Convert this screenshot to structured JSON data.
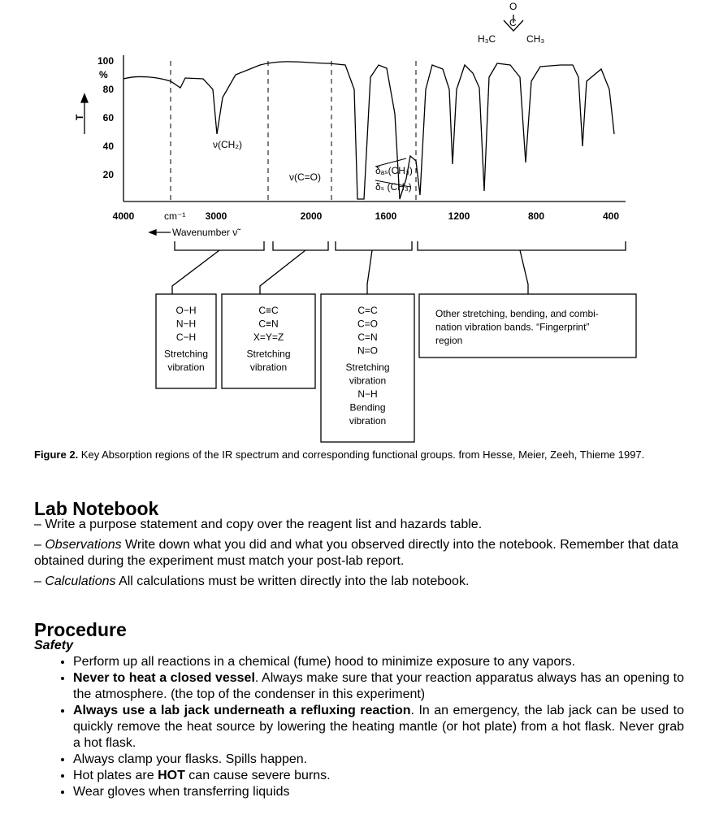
{
  "figure": {
    "y_axis_label": "T",
    "y_unit": "%",
    "y_ticks": [
      "100",
      "80",
      "60",
      "40",
      "20"
    ],
    "x_ticks": [
      "4000",
      "3000",
      "2000",
      "1600",
      "1200",
      "800",
      "400"
    ],
    "x_unit": "cm⁻¹",
    "x_label": "Wavenumber ν̃",
    "annotations": [
      "ν(CH₂)",
      "ν(C=O)",
      "δₐₛ(CH₃)",
      "δₛ (CH₃)"
    ],
    "molecule": [
      "O",
      "C",
      "H₃C",
      "CH₃"
    ],
    "regions": [
      {
        "groups": [
          "O−H",
          "N−H",
          "C−H"
        ],
        "caption": [
          "Stretching",
          "vibration"
        ]
      },
      {
        "groups": [
          "C≡C",
          "C≡N",
          "X=Y=Z"
        ],
        "caption": [
          "Stretching",
          "vibration"
        ]
      },
      {
        "groups": [
          "C=C",
          "C=O",
          "C=N",
          "N=O"
        ],
        "caption": [
          "Stretching",
          "vibration",
          "N−H",
          "Bending",
          "vibration"
        ]
      },
      {
        "groups": [
          "Other stretching, bending, and combi-",
          "nation vibration bands. “Fingerprint”",
          "region"
        ]
      }
    ],
    "caption": [
      {
        "text": "Figure 2.",
        "bold": true
      },
      {
        "text": " Key Absorption regions of the IR spectrum and corresponding functional groups. from Hesse, Meier, Zeeh, Thieme 1997."
      }
    ]
  },
  "notebook": {
    "title": "Lab Notebook",
    "lines": [
      [
        {
          "text": "– Write a purpose statement and copy over the reagent list and hazards table."
        }
      ],
      [
        {
          "text": "– "
        },
        {
          "text": "Observations",
          "italic": true
        },
        {
          "text": " Write down what you did and what you observed directly into the notebook. Remember that data obtained during the experiment must match your post-lab report."
        }
      ],
      [
        {
          "text": "– "
        },
        {
          "text": "Calculations",
          "italic": true
        },
        {
          "text": " All calculations must be written directly into the lab notebook."
        }
      ]
    ]
  },
  "procedure": {
    "title": "Procedure",
    "subtitle": "Safety",
    "bullets": [
      [
        {
          "text": "Perform up all reactions in a chemical (fume) hood to minimize exposure to any vapors."
        }
      ],
      [
        {
          "text": "Never to heat a closed vessel",
          "bold": true
        },
        {
          "text": ". Always make sure that your reaction apparatus always has an opening to the atmosphere. (the top of the condenser in this experiment)"
        }
      ],
      [
        {
          "text": "Always use a lab jack underneath a refluxing reaction",
          "bold": true
        },
        {
          "text": ". In an emergency, the lab jack can be used to quickly remove the heat source by lowering the heating mantle (or hot plate) from a hot flask. Never grab a hot flask."
        }
      ],
      [
        {
          "text": "Always clamp your flasks. Spills happen."
        }
      ],
      [
        {
          "text": "Hot plates are "
        },
        {
          "text": "HOT",
          "bold": true
        },
        {
          "text": " can cause severe burns."
        }
      ],
      [
        {
          "text": "Wear gloves when transferring liquids"
        }
      ]
    ]
  }
}
